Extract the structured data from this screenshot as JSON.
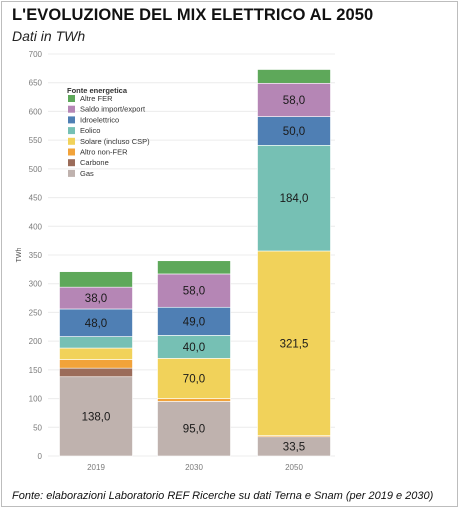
{
  "title": "L'EVOLUZIONE DEL MIX ELETTRICO AL 2050",
  "subtitle": "Dati in TWh",
  "source": "Fonte: elaborazioni Laboratorio REF Ricerche su dati Terna e Snam (per 2019 e 2030)",
  "chart_data": {
    "type": "bar",
    "stacked": true,
    "categories": [
      "2019",
      "2030",
      "2050"
    ],
    "ylabel": "TWh",
    "ylim": [
      0,
      700
    ],
    "yticks": [
      0,
      50,
      100,
      150,
      200,
      250,
      300,
      350,
      400,
      450,
      500,
      550,
      600,
      650,
      700
    ],
    "grid": true,
    "legend_title": "Fonte energetica",
    "legend_placement": "top-left",
    "series": [
      {
        "name": "Gas",
        "color": "#bfb2ae",
        "values": [
          138.0,
          95.0,
          33.5
        ],
        "labels": [
          "138,0",
          "95,0",
          "33,5"
        ]
      },
      {
        "name": "Carbone",
        "color": "#9b6c5a",
        "values": [
          15,
          0,
          0
        ],
        "labels": [
          "",
          "",
          ""
        ]
      },
      {
        "name": "Altro non-FER",
        "color": "#f2a33a",
        "values": [
          15,
          5,
          2
        ],
        "labels": [
          "",
          "",
          ""
        ]
      },
      {
        "name": "Solare (incluso CSP)",
        "color": "#f1d25a",
        "values": [
          20,
          70.0,
          321.5
        ],
        "labels": [
          "",
          "70,0",
          "321,5"
        ]
      },
      {
        "name": "Eolico",
        "color": "#76c0b4",
        "values": [
          20,
          40.0,
          184.0
        ],
        "labels": [
          "",
          "40,0",
          "184,0"
        ]
      },
      {
        "name": "Idroelettrico",
        "color": "#4f7fb4",
        "values": [
          48.0,
          49.0,
          50.0
        ],
        "labels": [
          "48,0",
          "49,0",
          "50,0"
        ]
      },
      {
        "name": "Saldo import/export",
        "color": "#b586b5",
        "values": [
          38.0,
          58.0,
          58.0
        ],
        "labels": [
          "38,0",
          "58,0",
          "58,0"
        ]
      },
      {
        "name": "Altre FER",
        "color": "#5ea85a",
        "values": [
          27,
          23,
          24
        ],
        "labels": [
          "",
          "",
          ""
        ]
      }
    ]
  }
}
